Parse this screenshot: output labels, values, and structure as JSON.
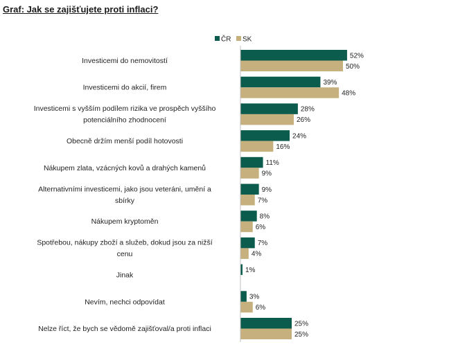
{
  "title": "Graf: Jak se zajišťujete proti inflaci?",
  "colors": {
    "CR": "#0b5c4d",
    "SK": "#c5b07e",
    "axis": "#bfbfbf"
  },
  "chart_data": {
    "type": "bar",
    "orientation": "horizontal",
    "categories": [
      [
        "Investicemi do nemovitostí"
      ],
      [
        "Investicemi do akcií, firem"
      ],
      [
        "Investicemi s vyšším podílem rizika ve prospěch vyššího",
        "potenciálního zhodnocení"
      ],
      [
        "Obecně držím menší podíl hotovosti"
      ],
      [
        "Nákupem zlata, vzácných kovů a drahých kamenů"
      ],
      [
        "Alternativními investicemi, jako jsou veteráni, umění a",
        "sbírky"
      ],
      [
        "Nákupem kryptoměn"
      ],
      [
        "Spotřebou, nákupy zboží a služeb, dokud jsou za nižší",
        "cenu"
      ],
      [
        "Jinak"
      ],
      [
        "Nevím, nechci odpovídat"
      ],
      [
        "Nelze říct, že bych se vědomě zajišťoval/a proti inflaci"
      ]
    ],
    "series": [
      {
        "name": "ČR",
        "values": [
          52,
          39,
          28,
          24,
          11,
          9,
          8,
          7,
          1,
          3,
          25
        ],
        "labels": [
          "52%",
          "39%",
          "28%",
          "24%",
          "11%",
          "9%",
          "8%",
          "7%",
          "1%",
          "3%",
          "25%"
        ]
      },
      {
        "name": "SK",
        "values": [
          50,
          48,
          26,
          16,
          9,
          7,
          6,
          4,
          null,
          6,
          25
        ],
        "labels": [
          "50%",
          "48%",
          "26%",
          "16%",
          "9%",
          "7%",
          "6%",
          "4%",
          "",
          "6%",
          "25%"
        ]
      }
    ],
    "unit": "%",
    "legend_position": "top-center"
  }
}
